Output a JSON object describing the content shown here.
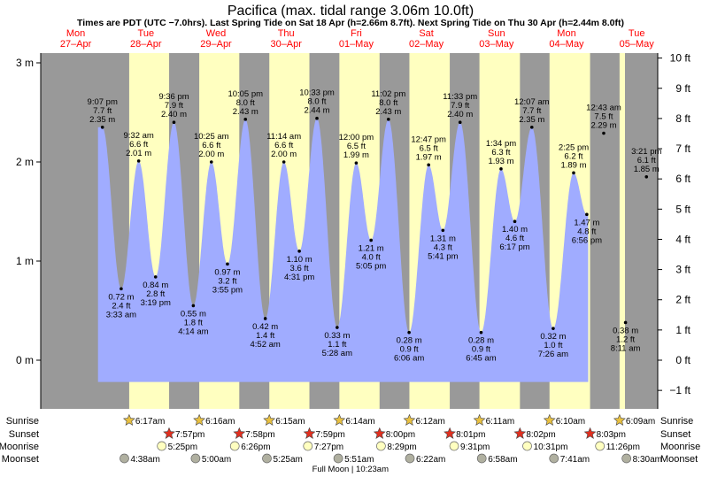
{
  "title": "Pacifica (max. tidal range 3.06m 10.0ft)",
  "subtitle": "Times are PDT (UTC −7.0hrs). Last Spring Tide on Sat 18 Apr (h=2.66m 8.7ft). Next Spring Tide on Thu 30 Apr (h=2.44m 8.0ft)",
  "colors": {
    "night": "#999999",
    "day": "#ffffc0",
    "water": "#a0acff",
    "day_header": "#ff0000",
    "text": "#000000",
    "sunrise_icon": "#e8c040",
    "sunset_icon": "#e03020",
    "moon_icon": "#ffffc0",
    "moonset_icon": "#b0b0a0"
  },
  "days": [
    {
      "weekday": "Mon",
      "date": "27–Apr"
    },
    {
      "weekday": "Tue",
      "date": "28–Apr"
    },
    {
      "weekday": "Wed",
      "date": "29–Apr"
    },
    {
      "weekday": "Thu",
      "date": "30–Apr"
    },
    {
      "weekday": "Fri",
      "date": "01–May"
    },
    {
      "weekday": "Sat",
      "date": "02–May"
    },
    {
      "weekday": "Sun",
      "date": "03–May"
    },
    {
      "weekday": "Mon",
      "date": "04–May"
    },
    {
      "weekday": "Tue",
      "date": "05–May"
    }
  ],
  "chart_data": {
    "type": "area",
    "title": "Pacifica (max. tidal range 3.06m 10.0ft)",
    "x_unit": "hours from 00:00 Mon 27-Apr (PDT)",
    "xlim": [
      0,
      198
    ],
    "ylim_m": [
      -0.55,
      3.1
    ],
    "ylim_ft": [
      -1.8,
      10.2
    ],
    "left_axis": {
      "unit": "m",
      "ticks": [
        0,
        1,
        2,
        3
      ],
      "labels": [
        "0 m",
        "1 m",
        "2 m",
        "3 m"
      ]
    },
    "right_axis": {
      "unit": "ft",
      "ticks": [
        -1,
        0,
        1,
        2,
        3,
        4,
        5,
        6,
        7,
        8,
        9,
        10
      ],
      "labels": [
        "−1 ft",
        "0 ft",
        "1 ft",
        "2 ft",
        "3 ft",
        "4 ft",
        "5 ft",
        "6 ft",
        "7 ft",
        "8 ft",
        "9 ft",
        "10 ft"
      ]
    },
    "curve_start_h": 19.6,
    "curve_end_h": 187.4,
    "extremes": [
      {
        "h": 21.12,
        "m": 2.35,
        "time": "9:07 pm",
        "height_m": "2.35 m",
        "height_ft": "7.7 ft",
        "kind": "high"
      },
      {
        "h": 27.55,
        "m": 0.72,
        "time": "3:33 am",
        "height_m": "0.72 m",
        "height_ft": "2.4 ft",
        "kind": "low"
      },
      {
        "h": 33.53,
        "m": 2.01,
        "time": "9:32 am",
        "height_m": "2.01 m",
        "height_ft": "6.6 ft",
        "kind": "high"
      },
      {
        "h": 39.32,
        "m": 0.84,
        "time": "3:19 pm",
        "height_m": "0.84 m",
        "height_ft": "2.8 ft",
        "kind": "low"
      },
      {
        "h": 45.6,
        "m": 2.4,
        "time": "9:36 pm",
        "height_m": "2.40 m",
        "height_ft": "7.9 ft",
        "kind": "high"
      },
      {
        "h": 52.23,
        "m": 0.55,
        "time": "4:14 am",
        "height_m": "0.55 m",
        "height_ft": "1.8 ft",
        "kind": "low"
      },
      {
        "h": 58.42,
        "m": 2.0,
        "time": "10:25 am",
        "height_m": "2.00 m",
        "height_ft": "6.6 ft",
        "kind": "high"
      },
      {
        "h": 63.92,
        "m": 0.97,
        "time": "3:55 pm",
        "height_m": "0.97 m",
        "height_ft": "3.2 ft",
        "kind": "low"
      },
      {
        "h": 70.08,
        "m": 2.43,
        "time": "10:05 pm",
        "height_m": "2.43 m",
        "height_ft": "8.0 ft",
        "kind": "high"
      },
      {
        "h": 76.87,
        "m": 0.42,
        "time": "4:52 am",
        "height_m": "0.42 m",
        "height_ft": "1.4 ft",
        "kind": "low"
      },
      {
        "h": 83.23,
        "m": 2.0,
        "time": "11:14 am",
        "height_m": "2.00 m",
        "height_ft": "6.6 ft",
        "kind": "high"
      },
      {
        "h": 88.52,
        "m": 1.1,
        "time": "4:31 pm",
        "height_m": "1.10 m",
        "height_ft": "3.6 ft",
        "kind": "low"
      },
      {
        "h": 94.55,
        "m": 2.44,
        "time": "10:33 pm",
        "height_m": "2.44 m",
        "height_ft": "8.0 ft",
        "kind": "high"
      },
      {
        "h": 101.47,
        "m": 0.33,
        "time": "5:28 am",
        "height_m": "0.33 m",
        "height_ft": "1.1 ft",
        "kind": "low"
      },
      {
        "h": 108.0,
        "m": 1.99,
        "time": "12:00 pm",
        "height_m": "1.99 m",
        "height_ft": "6.5 ft",
        "kind": "high"
      },
      {
        "h": 113.08,
        "m": 1.21,
        "time": "5:05 pm",
        "height_m": "1.21 m",
        "height_ft": "4.0 ft",
        "kind": "low"
      },
      {
        "h": 119.03,
        "m": 2.43,
        "time": "11:02 pm",
        "height_m": "2.43 m",
        "height_ft": "8.0 ft",
        "kind": "high"
      },
      {
        "h": 126.1,
        "m": 0.28,
        "time": "6:06 am",
        "height_m": "0.28 m",
        "height_ft": "0.9 ft",
        "kind": "low"
      },
      {
        "h": 132.78,
        "m": 1.97,
        "time": "12:47 pm",
        "height_m": "1.97 m",
        "height_ft": "6.5 ft",
        "kind": "high"
      },
      {
        "h": 137.68,
        "m": 1.31,
        "time": "5:41 pm",
        "height_m": "1.31 m",
        "height_ft": "4.3 ft",
        "kind": "low"
      },
      {
        "h": 143.55,
        "m": 2.4,
        "time": "11:33 pm",
        "height_m": "2.40 m",
        "height_ft": "7.9 ft",
        "kind": "high"
      },
      {
        "h": 150.75,
        "m": 0.28,
        "time": "6:45 am",
        "height_m": "0.28 m",
        "height_ft": "0.9 ft",
        "kind": "low"
      },
      {
        "h": 157.57,
        "m": 1.93,
        "time": "1:34 pm",
        "height_m": "1.93 m",
        "height_ft": "6.3 ft",
        "kind": "high"
      },
      {
        "h": 162.28,
        "m": 1.4,
        "time": "6:17 pm",
        "height_m": "1.40 m",
        "height_ft": "4.6 ft",
        "kind": "low"
      },
      {
        "h": 168.12,
        "m": 2.35,
        "time": "12:07 am",
        "height_m": "2.35 m",
        "height_ft": "7.7 ft",
        "kind": "high"
      },
      {
        "h": 175.43,
        "m": 0.32,
        "time": "7:26 am",
        "height_m": "0.32 m",
        "height_ft": "1.0 ft",
        "kind": "low"
      },
      {
        "h": 182.42,
        "m": 1.89,
        "time": "2:25 pm",
        "height_m": "1.89 m",
        "height_ft": "6.2 ft",
        "kind": "high"
      },
      {
        "h": 186.93,
        "m": 1.47,
        "time": "6:56 pm",
        "height_m": "1.47 m",
        "height_ft": "4.8 ft",
        "kind": "low"
      },
      {
        "h": 192.72,
        "m": 2.29,
        "time": "12:43 am",
        "height_m": "2.29 m",
        "height_ft": "7.5 ft",
        "kind": "high"
      },
      {
        "h": 200.18,
        "m": 0.38,
        "time": "8:11 am",
        "height_m": "0.38 m",
        "height_ft": "1.2 ft",
        "kind": "low"
      },
      {
        "h": 207.35,
        "m": 1.85,
        "time": "3:21 pm",
        "height_m": "1.85 m",
        "height_ft": "6.1 ft",
        "kind": "high"
      }
    ],
    "daylight_h": [
      [
        30.28,
        43.95
      ],
      [
        54.27,
        67.97
      ],
      [
        78.25,
        91.98
      ],
      [
        102.23,
        115.99
      ],
      [
        126.2,
        140.02
      ],
      [
        150.18,
        164.04
      ],
      [
        174.17,
        188.05
      ],
      [
        198.15,
        200
      ]
    ]
  },
  "almanac": {
    "row_labels": [
      "Sunrise",
      "Sunset",
      "Moonrise",
      "Moonset"
    ],
    "sunrise": [
      {
        "h": 30.28,
        "t": "6:17am"
      },
      {
        "h": 54.27,
        "t": "6:16am"
      },
      {
        "h": 78.25,
        "t": "6:15am"
      },
      {
        "h": 102.23,
        "t": "6:14am"
      },
      {
        "h": 126.2,
        "t": "6:12am"
      },
      {
        "h": 150.18,
        "t": "6:11am"
      },
      {
        "h": 174.17,
        "t": "6:10am"
      },
      {
        "h": 198.15,
        "t": "6:09am"
      }
    ],
    "sunset": [
      {
        "h": 43.95,
        "t": "7:57pm"
      },
      {
        "h": 67.97,
        "t": "7:58pm"
      },
      {
        "h": 91.98,
        "t": "7:59pm"
      },
      {
        "h": 115.99,
        "t": "8:00pm"
      },
      {
        "h": 140.02,
        "t": "8:01pm"
      },
      {
        "h": 164.04,
        "t": "8:02pm"
      },
      {
        "h": 188.05,
        "t": "8:03pm"
      }
    ],
    "moonrise": [
      {
        "h": 41.42,
        "t": "5:25pm"
      },
      {
        "h": 66.43,
        "t": "6:26pm"
      },
      {
        "h": 91.45,
        "t": "7:27pm"
      },
      {
        "h": 116.48,
        "t": "8:29pm"
      },
      {
        "h": 141.52,
        "t": "9:31pm"
      },
      {
        "h": 166.52,
        "t": "10:31pm"
      },
      {
        "h": 191.43,
        "t": "11:26pm"
      }
    ],
    "moonset": [
      {
        "h": 28.63,
        "t": "4:38am"
      },
      {
        "h": 53.0,
        "t": "5:00am"
      },
      {
        "h": 77.42,
        "t": "5:25am"
      },
      {
        "h": 101.85,
        "t": "5:51am"
      },
      {
        "h": 126.37,
        "t": "6:22am"
      },
      {
        "h": 150.97,
        "t": "6:58am"
      },
      {
        "h": 175.68,
        "t": "7:41am"
      },
      {
        "h": 200.5,
        "t": "8:30am"
      }
    ],
    "moon_phase": {
      "h": 106.0,
      "text": "Full Moon | 10:23am"
    }
  }
}
